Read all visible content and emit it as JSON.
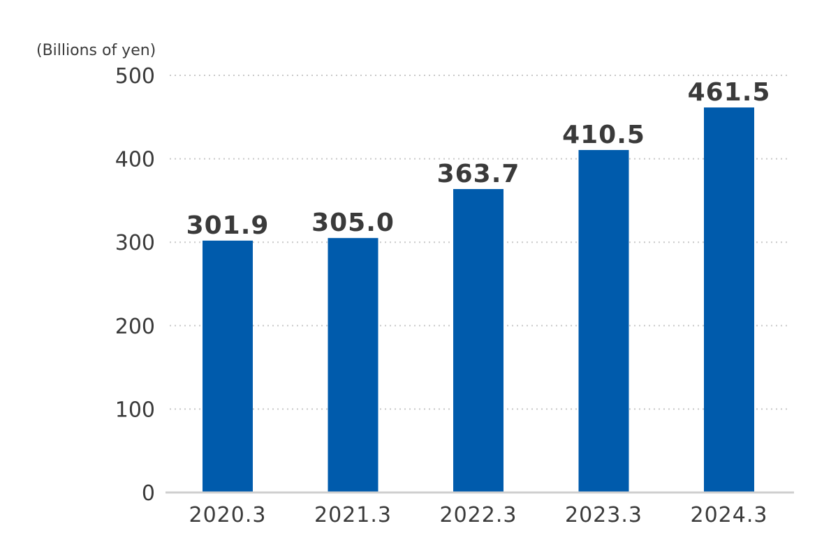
{
  "chart_data": {
    "type": "bar",
    "unit_label": "(Billions of yen)",
    "categories": [
      "2020.3",
      "2021.3",
      "2022.3",
      "2023.3",
      "2024.3"
    ],
    "values": [
      301.9,
      305.0,
      363.7,
      410.5,
      461.5
    ],
    "data_labels": [
      "301.9",
      "305.0",
      "363.7",
      "410.5",
      "461.5"
    ],
    "y_ticks": [
      0,
      100,
      200,
      300,
      400,
      500
    ],
    "ylim": [
      0,
      500
    ],
    "grid": true,
    "bar_color": "#005bac",
    "label_color": "#3a3a3a"
  }
}
